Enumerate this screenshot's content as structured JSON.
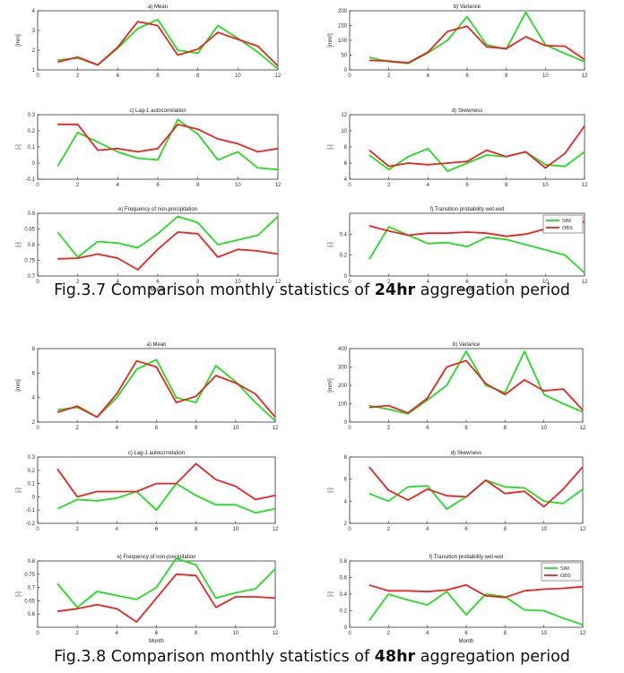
{
  "figures": [
    {
      "caption": {
        "prefix": "Fig.3.7 Comparison monthly statistics of ",
        "bold": "24hr",
        "suffix": " aggregation period"
      }
    },
    {
      "caption": {
        "prefix": "Fig.3.8 Comparison monthly statistics of ",
        "bold": "48hr",
        "suffix": " aggregation period"
      }
    }
  ],
  "colors": {
    "SIM": "#22dd22",
    "OBS": "#ee2222"
  },
  "chart_data": [
    {
      "type": "line",
      "title": "a) Mean",
      "xlabel": "",
      "ylabel": "[mm]",
      "xlim": [
        0,
        12
      ],
      "ylim": [
        1,
        4
      ],
      "xticks": [
        0,
        2,
        4,
        6,
        8,
        10,
        12
      ],
      "yticks": [
        1,
        2,
        3,
        4
      ],
      "x": [
        1,
        2,
        3,
        4,
        5,
        6,
        7,
        8,
        9,
        10,
        11,
        12
      ],
      "series": [
        {
          "name": "SIM",
          "values": [
            1.5,
            1.6,
            1.25,
            2.1,
            3.1,
            3.55,
            2.0,
            1.85,
            3.25,
            2.6,
            1.9,
            1.05
          ]
        },
        {
          "name": "OBS",
          "values": [
            1.4,
            1.65,
            1.25,
            2.15,
            3.45,
            3.25,
            1.75,
            2.05,
            2.9,
            2.55,
            2.2,
            1.2
          ]
        }
      ]
    },
    {
      "type": "line",
      "title": "b) Variance",
      "xlabel": "",
      "ylabel": "[mm²]",
      "xlim": [
        0,
        12
      ],
      "ylim": [
        0,
        200
      ],
      "xticks": [
        0,
        2,
        4,
        6,
        8,
        10,
        12
      ],
      "yticks": [
        0,
        50,
        100,
        150,
        200
      ],
      "x": [
        1,
        2,
        3,
        4,
        5,
        6,
        7,
        8,
        9,
        10,
        11,
        12
      ],
      "series": [
        {
          "name": "SIM",
          "values": [
            42,
            28,
            22,
            58,
            100,
            180,
            85,
            70,
            195,
            85,
            55,
            28
          ]
        },
        {
          "name": "OBS",
          "values": [
            32,
            30,
            24,
            60,
            130,
            148,
            78,
            72,
            112,
            82,
            80,
            35
          ]
        }
      ]
    },
    {
      "type": "line",
      "title": "c) Lag-1 autocorrelation",
      "xlabel": "",
      "ylabel": "[-]",
      "xlim": [
        0,
        12
      ],
      "ylim": [
        -0.1,
        0.3
      ],
      "xticks": [
        0,
        2,
        4,
        6,
        8,
        10,
        12
      ],
      "yticks": [
        -0.1,
        0,
        0.1,
        0.2,
        0.3
      ],
      "x": [
        1,
        2,
        3,
        4,
        5,
        6,
        7,
        8,
        9,
        10,
        11,
        12
      ],
      "series": [
        {
          "name": "SIM",
          "values": [
            -0.02,
            0.19,
            0.13,
            0.07,
            0.03,
            0.02,
            0.27,
            0.18,
            0.02,
            0.07,
            -0.03,
            -0.04
          ]
        },
        {
          "name": "OBS",
          "values": [
            0.24,
            0.24,
            0.08,
            0.09,
            0.07,
            0.09,
            0.24,
            0.21,
            0.15,
            0.12,
            0.07,
            0.09
          ]
        }
      ]
    },
    {
      "type": "line",
      "title": "d) Skewness",
      "xlabel": "",
      "ylabel": "[-]",
      "xlim": [
        0,
        12
      ],
      "ylim": [
        4,
        12
      ],
      "xticks": [
        0,
        2,
        4,
        6,
        8,
        10,
        12
      ],
      "yticks": [
        4,
        6,
        8,
        10,
        12
      ],
      "x": [
        1,
        2,
        3,
        4,
        5,
        6,
        7,
        8,
        9,
        10,
        11,
        12
      ],
      "series": [
        {
          "name": "SIM",
          "values": [
            7.0,
            5.2,
            6.8,
            7.8,
            5.0,
            6.0,
            7.0,
            6.8,
            7.4,
            5.8,
            5.6,
            7.4
          ]
        },
        {
          "name": "OBS",
          "values": [
            7.6,
            5.6,
            6.0,
            5.8,
            6.0,
            6.2,
            7.6,
            6.8,
            7.4,
            5.4,
            7.2,
            10.6
          ]
        }
      ]
    },
    {
      "type": "line",
      "title": "e) Frequency of non-precipitation",
      "xlabel": "Month",
      "ylabel": "[-]",
      "xlim": [
        0,
        12
      ],
      "ylim": [
        0.7,
        0.9
      ],
      "xticks": [
        0,
        2,
        4,
        6,
        8,
        10,
        12
      ],
      "yticks": [
        0.7,
        0.75,
        0.8,
        0.85,
        0.9
      ],
      "x": [
        1,
        2,
        3,
        4,
        5,
        6,
        7,
        8,
        9,
        10,
        11,
        12
      ],
      "series": [
        {
          "name": "SIM",
          "values": [
            0.84,
            0.76,
            0.81,
            0.805,
            0.79,
            0.835,
            0.89,
            0.87,
            0.8,
            0.815,
            0.83,
            0.89
          ]
        },
        {
          "name": "OBS",
          "values": [
            0.755,
            0.757,
            0.77,
            0.757,
            0.72,
            0.785,
            0.84,
            0.835,
            0.76,
            0.785,
            0.78,
            0.77
          ]
        }
      ]
    },
    {
      "type": "line",
      "title": "f) Transition probability wet-wet",
      "xlabel": "Month",
      "ylabel": "[-]",
      "xlim": [
        0,
        12
      ],
      "ylim": [
        0,
        0.6
      ],
      "xticks": [
        0,
        2,
        4,
        6,
        8,
        10,
        12
      ],
      "yticks": [
        0,
        0.2,
        0.4
      ],
      "x": [
        1,
        2,
        3,
        4,
        5,
        6,
        7,
        8,
        9,
        10,
        11,
        12
      ],
      "legend": "top-right",
      "series": [
        {
          "name": "SIM",
          "values": [
            0.16,
            0.47,
            0.39,
            0.31,
            0.32,
            0.28,
            0.37,
            0.35,
            0.3,
            0.25,
            0.2,
            0.03
          ]
        },
        {
          "name": "OBS",
          "values": [
            0.48,
            0.43,
            0.39,
            0.41,
            0.41,
            0.42,
            0.41,
            0.38,
            0.4,
            0.45,
            0.47,
            0.52
          ]
        }
      ]
    },
    {
      "type": "line",
      "title": "a) Mean",
      "xlabel": "",
      "ylabel": "[mm]",
      "xlim": [
        0,
        12
      ],
      "ylim": [
        2,
        8
      ],
      "xticks": [
        0,
        2,
        4,
        6,
        8,
        10,
        12
      ],
      "yticks": [
        2,
        4,
        6,
        8
      ],
      "x": [
        1,
        2,
        3,
        4,
        5,
        6,
        7,
        8,
        9,
        10,
        11,
        12
      ],
      "series": [
        {
          "name": "SIM",
          "values": [
            3.0,
            3.2,
            2.4,
            4.0,
            6.3,
            7.1,
            4.0,
            3.6,
            6.6,
            5.3,
            3.6,
            2.1
          ]
        },
        {
          "name": "OBS",
          "values": [
            2.8,
            3.3,
            2.4,
            4.3,
            7.0,
            6.5,
            3.6,
            4.1,
            5.8,
            5.2,
            4.3,
            2.4
          ]
        }
      ]
    },
    {
      "type": "line",
      "title": "b) Variance",
      "xlabel": "",
      "ylabel": "[mm²]",
      "xlim": [
        0,
        12
      ],
      "ylim": [
        0,
        400
      ],
      "xticks": [
        0,
        2,
        4,
        6,
        8,
        10,
        12
      ],
      "yticks": [
        0,
        100,
        200,
        300,
        400
      ],
      "x": [
        1,
        2,
        3,
        4,
        5,
        6,
        7,
        8,
        9,
        10,
        11,
        12
      ],
      "series": [
        {
          "name": "SIM",
          "values": [
            90,
            70,
            45,
            120,
            200,
            385,
            200,
            160,
            385,
            150,
            100,
            55
          ]
        },
        {
          "name": "OBS",
          "values": [
            80,
            90,
            50,
            130,
            300,
            335,
            210,
            150,
            230,
            170,
            180,
            65
          ]
        }
      ]
    },
    {
      "type": "line",
      "title": "c) Lag-1 autocorrelation",
      "xlabel": "",
      "ylabel": "[-]",
      "xlim": [
        0,
        12
      ],
      "ylim": [
        -0.2,
        0.3
      ],
      "xticks": [
        0,
        2,
        4,
        6,
        8,
        10,
        12
      ],
      "yticks": [
        -0.2,
        -0.1,
        0,
        0.1,
        0.2,
        0.3
      ],
      "x": [
        1,
        2,
        3,
        4,
        5,
        6,
        7,
        8,
        9,
        10,
        11,
        12
      ],
      "series": [
        {
          "name": "SIM",
          "values": [
            -0.09,
            -0.02,
            -0.03,
            -0.01,
            0.04,
            -0.1,
            0.1,
            0.01,
            -0.06,
            -0.06,
            -0.12,
            -0.09
          ]
        },
        {
          "name": "OBS",
          "values": [
            0.21,
            0.0,
            0.04,
            0.04,
            0.04,
            0.1,
            0.1,
            0.25,
            0.13,
            0.08,
            -0.02,
            0.01
          ]
        }
      ]
    },
    {
      "type": "line",
      "title": "d) Skewness",
      "xlabel": "",
      "ylabel": "[-]",
      "xlim": [
        0,
        12
      ],
      "ylim": [
        2,
        8
      ],
      "xticks": [
        0,
        2,
        4,
        6,
        8,
        10,
        12
      ],
      "yticks": [
        2,
        4,
        6,
        8
      ],
      "x": [
        1,
        2,
        3,
        4,
        5,
        6,
        7,
        8,
        9,
        10,
        11,
        12
      ],
      "series": [
        {
          "name": "SIM",
          "values": [
            4.7,
            4.0,
            5.3,
            5.4,
            3.3,
            4.4,
            5.9,
            5.3,
            5.2,
            4.0,
            3.8,
            5.1
          ]
        },
        {
          "name": "OBS",
          "values": [
            7.1,
            5.0,
            4.1,
            5.1,
            4.5,
            4.4,
            5.9,
            4.7,
            4.9,
            3.5,
            5.1,
            7.1
          ]
        }
      ]
    },
    {
      "type": "line",
      "title": "e) Frequency of non-precipitation",
      "xlabel": "Month",
      "ylabel": "[-]",
      "xlim": [
        0,
        12
      ],
      "ylim": [
        0.55,
        0.8
      ],
      "xticks": [
        0,
        2,
        4,
        6,
        8,
        10,
        12
      ],
      "yticks": [
        0.6,
        0.65,
        0.7,
        0.75,
        0.8
      ],
      "x": [
        1,
        2,
        3,
        4,
        5,
        6,
        7,
        8,
        9,
        10,
        11,
        12
      ],
      "series": [
        {
          "name": "SIM",
          "values": [
            0.715,
            0.625,
            0.685,
            0.67,
            0.655,
            0.7,
            0.81,
            0.785,
            0.66,
            0.68,
            0.695,
            0.77
          ]
        },
        {
          "name": "OBS",
          "values": [
            0.61,
            0.62,
            0.635,
            0.62,
            0.57,
            0.66,
            0.75,
            0.745,
            0.625,
            0.665,
            0.665,
            0.66
          ]
        }
      ]
    },
    {
      "type": "line",
      "title": "f) Transition probability wet-wet",
      "xlabel": "Month",
      "ylabel": "[-]",
      "xlim": [
        0,
        12
      ],
      "ylim": [
        0,
        0.8
      ],
      "xticks": [
        0,
        2,
        4,
        6,
        8,
        10,
        12
      ],
      "yticks": [
        0,
        0.2,
        0.4,
        0.6,
        0.8
      ],
      "x": [
        1,
        2,
        3,
        4,
        5,
        6,
        7,
        8,
        9,
        10,
        11,
        12
      ],
      "legend": "top-right",
      "series": [
        {
          "name": "SIM",
          "values": [
            0.08,
            0.4,
            0.33,
            0.27,
            0.43,
            0.15,
            0.4,
            0.37,
            0.21,
            0.2,
            0.11,
            0.03
          ]
        },
        {
          "name": "OBS",
          "values": [
            0.51,
            0.44,
            0.44,
            0.43,
            0.45,
            0.51,
            0.38,
            0.36,
            0.44,
            0.46,
            0.47,
            0.49
          ]
        }
      ]
    }
  ]
}
